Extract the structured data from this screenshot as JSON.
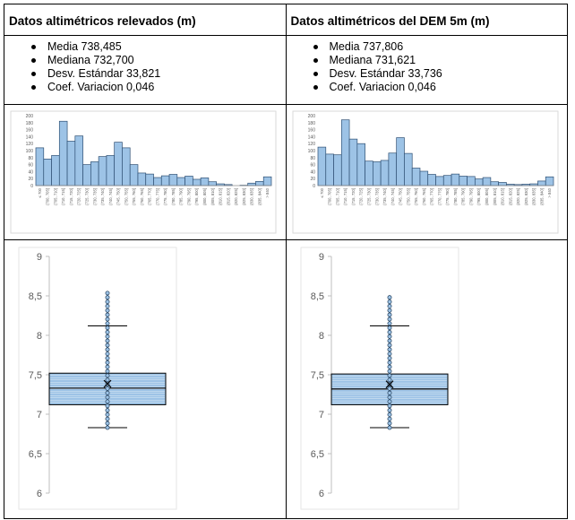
{
  "columns": [
    {
      "header": "Datos altimétricos relevados (m)",
      "stats": [
        "Media 738,485",
        "Mediana 732,700",
        "Desv. Estándar 33,821",
        "Coef. Variacion 0,046"
      ]
    },
    {
      "header": "Datos altimétricos del DEM 5m (m)",
      "stats": [
        "Media 737,806",
        "Mediana 731,621",
        "Desv. Estándar 33,736",
        "Coef. Variacion 0,046"
      ]
    }
  ],
  "chart_data": [
    {
      "type": "bar",
      "title": "",
      "ylim": [
        0,
        200
      ],
      "yticks": [
        "0",
        "20",
        "40",
        "60",
        "80",
        "100",
        "120",
        "140",
        "160",
        "180",
        "200"
      ],
      "categories": [
        "≤ 700",
        "(700, 705]",
        "(705, 710]",
        "(710, 715]",
        "(715, 720]",
        "(720, 725]",
        "(725, 730]",
        "(730, 735]",
        "(735, 740]",
        "(740, 745]",
        "(745, 750]",
        "(750, 755]",
        "(755, 760]",
        "(760, 765]",
        "(765, 770]",
        "(770, 775]",
        "(775, 780]",
        "(780, 785]",
        "(785, 790]",
        "(790, 795]",
        "(795, 800]",
        "(800, 805]",
        "(805, 810]",
        "(810, 815]",
        "(815, 820]",
        "(820, 825]",
        "(825, 830]",
        "(830, 835]",
        "(835, 840]",
        "> 840"
      ],
      "values": [
        108,
        76,
        86,
        184,
        127,
        142,
        60,
        68,
        83,
        86,
        124,
        108,
        60,
        36,
        33,
        23,
        28,
        32,
        23,
        27,
        18,
        22,
        11,
        5,
        3,
        0,
        1,
        7,
        12,
        25
      ],
      "bar_color": "#9dc3e6"
    },
    {
      "type": "bar",
      "title": "",
      "ylim": [
        0,
        200
      ],
      "yticks": [
        "0",
        "20",
        "40",
        "60",
        "80",
        "100",
        "120",
        "140",
        "160",
        "180",
        "200"
      ],
      "categories": [
        "≤ 700",
        "(700, 705]",
        "(705, 710]",
        "(710, 715]",
        "(715, 720]",
        "(720, 725]",
        "(725, 730]",
        "(730, 735]",
        "(735, 740]",
        "(740, 745]",
        "(745, 750]",
        "(750, 755]",
        "(755, 760]",
        "(760, 765]",
        "(765, 770]",
        "(770, 775]",
        "(775, 780]",
        "(780, 785]",
        "(785, 790]",
        "(790, 795]",
        "(795, 800]",
        "(800, 805]",
        "(805, 810]",
        "(810, 815]",
        "(815, 820]",
        "(820, 825]",
        "(825, 830]",
        "(830, 835]",
        "(835, 840]",
        "> 840"
      ],
      "values": [
        110,
        90,
        88,
        188,
        133,
        120,
        70,
        68,
        72,
        93,
        137,
        92,
        50,
        41,
        32,
        26,
        29,
        33,
        27,
        26,
        19,
        23,
        11,
        9,
        4,
        3,
        4,
        5,
        13,
        25
      ],
      "bar_color": "#9dc3e6"
    },
    {
      "type": "box",
      "ylim": [
        6,
        9
      ],
      "yticks": [
        "6",
        "6,5",
        "7",
        "7,5",
        "8",
        "8,5",
        "9"
      ],
      "tick_values": [
        6,
        6.5,
        7,
        7.5,
        8,
        8.5,
        9
      ],
      "q1": 7.12,
      "median": 7.33,
      "q3": 7.52,
      "whisker_low": 6.83,
      "whisker_high": 8.12,
      "points_min": 6.83,
      "points_max": 8.57,
      "mean": 7.385,
      "box_color": "#9dc3e6"
    },
    {
      "type": "box",
      "ylim": [
        6,
        9
      ],
      "yticks": [
        "6",
        "6,5",
        "7",
        "7,5",
        "8",
        "8,5",
        "9"
      ],
      "tick_values": [
        6,
        6.5,
        7,
        7.5,
        8,
        8.5,
        9
      ],
      "q1": 7.12,
      "median": 7.32,
      "q3": 7.51,
      "whisker_low": 6.83,
      "whisker_high": 8.12,
      "points_min": 6.83,
      "points_max": 8.53,
      "mean": 7.378,
      "box_color": "#9dc3e6"
    }
  ]
}
